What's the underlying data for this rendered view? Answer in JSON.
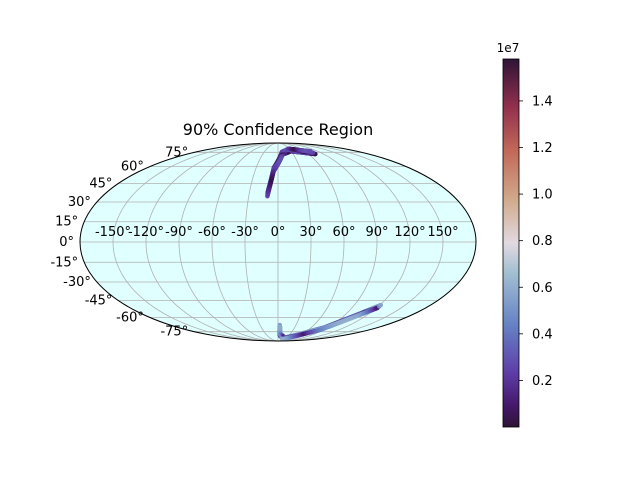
{
  "chart_data": {
    "type": "scatter",
    "projection": "mollweide",
    "title": "90% Confidence Region",
    "background_color": "#e0ffff",
    "grid": true,
    "longitude_ticks": [
      "-150°",
      "-120°",
      "-90°",
      "-60°",
      "-30°",
      "0°",
      "30°",
      "60°",
      "90°",
      "120°",
      "150°"
    ],
    "latitude_ticks": [
      "75°",
      "60°",
      "45°",
      "30°",
      "15°",
      "0°",
      "-15°",
      "-30°",
      "-45°",
      "-60°",
      "-75°"
    ],
    "colormap": "twilight_shifted",
    "colorbar": {
      "exponent_label": "1e7",
      "ticks": [
        0.2,
        0.4,
        0.6,
        0.8,
        1.0,
        1.2,
        1.4
      ],
      "tick_labels": [
        "0.2",
        "0.4",
        "0.6",
        "0.8",
        "1.0",
        "1.2",
        "1.4"
      ],
      "range": [
        0.0,
        1.58
      ]
    },
    "regions": [
      {
        "arc": [
          [
            -0.19,
            0.63
          ],
          [
            -0.1,
            1.0
          ],
          [
            0.15,
            1.29
          ],
          [
            0.5,
            1.36
          ],
          [
            0.9,
            1.33
          ],
          [
            1.3,
            1.3
          ]
        ],
        "thickness_deg": 4,
        "value_range": [
          0.02,
          0.3
        ]
      },
      {
        "arc": [
          [
            0.05,
            -1.2
          ],
          [
            0.1,
            -1.38
          ],
          [
            0.4,
            -1.48
          ],
          [
            0.9,
            -1.39
          ],
          [
            1.45,
            -1.25
          ],
          [
            1.92,
            -0.98
          ],
          [
            2.12,
            -0.87
          ]
        ],
        "thickness_deg": 3,
        "value_range": [
          0.1,
          0.6
        ]
      }
    ]
  }
}
